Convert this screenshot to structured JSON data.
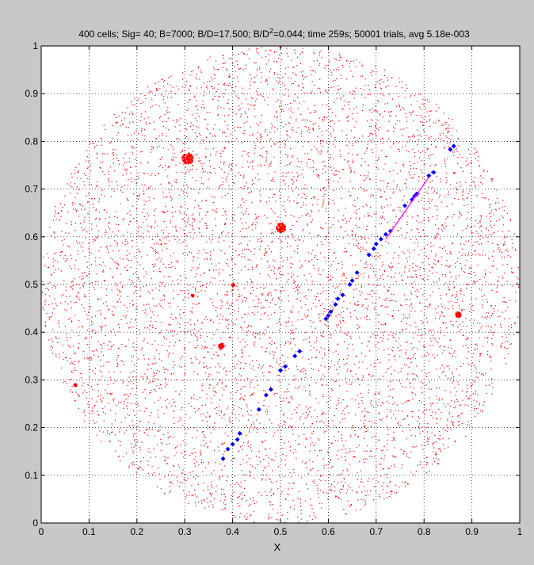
{
  "chart_data": {
    "type": "scatter",
    "title_parts": [
      "400 cells; Sig=  40; B=7000; B/D=17.500; B/D",
      "2",
      "=0.044; time 259s; 50001 trials, avg 5.18e-003"
    ],
    "xlabel": "X",
    "ylabel": "",
    "xlim": [
      0,
      1
    ],
    "ylim": [
      0,
      1
    ],
    "x_ticks": [
      "0",
      "0.1",
      "0.2",
      "0.3",
      "0.4",
      "0.5",
      "0.6",
      "0.7",
      "0.8",
      "0.9",
      "1"
    ],
    "y_ticks": [
      "0",
      "0.1",
      "0.2",
      "0.3",
      "0.4",
      "0.5",
      "0.6",
      "0.7",
      "0.8",
      "0.9",
      "1"
    ],
    "grid": true,
    "background_color": "#c8c8c8",
    "plot_background": "#ffffff",
    "series": [
      {
        "marker": "dot",
        "color": "#ff0000",
        "description": "background points within circle",
        "disk": {
          "center": [
            0.5,
            0.5
          ],
          "radius": 0.5
        },
        "count": 6500
      },
      {
        "marker": "dot",
        "color": "#ff0000",
        "clusters": [
          {
            "center": [
              0.305,
              0.765
            ],
            "radius": 0.012
          },
          {
            "center": [
              0.5,
              0.62
            ],
            "radius": 0.01
          },
          {
            "center": [
              0.375,
              0.372
            ],
            "radius": 0.006
          },
          {
            "center": [
              0.87,
              0.438
            ],
            "radius": 0.006
          },
          {
            "center": [
              0.4,
              0.5
            ],
            "radius": 0.003
          },
          {
            "center": [
              0.315,
              0.478
            ],
            "radius": 0.003
          },
          {
            "center": [
              0.07,
              0.29
            ],
            "radius": 0.003
          }
        ]
      },
      {
        "marker": "diamond",
        "color": "#0000ff",
        "points": [
          [
            0.38,
            0.135
          ],
          [
            0.39,
            0.155
          ],
          [
            0.4,
            0.165
          ],
          [
            0.41,
            0.175
          ],
          [
            0.415,
            0.188
          ],
          [
            0.455,
            0.238
          ],
          [
            0.47,
            0.268
          ],
          [
            0.48,
            0.28
          ],
          [
            0.5,
            0.32
          ],
          [
            0.51,
            0.328
          ],
          [
            0.53,
            0.35
          ],
          [
            0.54,
            0.36
          ],
          [
            0.595,
            0.428
          ],
          [
            0.6,
            0.435
          ],
          [
            0.605,
            0.443
          ],
          [
            0.615,
            0.458
          ],
          [
            0.62,
            0.47
          ],
          [
            0.63,
            0.478
          ],
          [
            0.645,
            0.5
          ],
          [
            0.65,
            0.508
          ],
          [
            0.66,
            0.525
          ],
          [
            0.685,
            0.562
          ],
          [
            0.695,
            0.575
          ],
          [
            0.7,
            0.585
          ],
          [
            0.71,
            0.595
          ],
          [
            0.72,
            0.605
          ],
          [
            0.73,
            0.612
          ],
          [
            0.76,
            0.665
          ],
          [
            0.775,
            0.678
          ],
          [
            0.78,
            0.685
          ],
          [
            0.785,
            0.69
          ],
          [
            0.81,
            0.728
          ],
          [
            0.82,
            0.735
          ],
          [
            0.855,
            0.783
          ],
          [
            0.862,
            0.79
          ]
        ]
      },
      {
        "marker": "line",
        "color": "#ff00ff",
        "points": [
          [
            0.72,
            0.595
          ],
          [
            0.81,
            0.725
          ]
        ]
      }
    ]
  }
}
